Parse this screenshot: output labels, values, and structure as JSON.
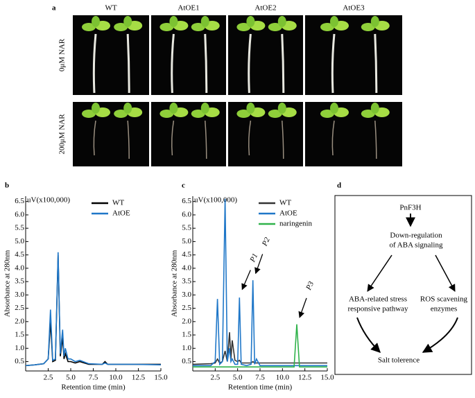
{
  "panel_labels": [
    "a",
    "b",
    "c",
    "d"
  ],
  "photo_panel": {
    "column_labels": [
      "WT",
      "AtOE1",
      "AtOE2",
      "AtOE3"
    ],
    "row_labels": [
      "0μM NAR",
      "200μM NAR"
    ]
  },
  "chart_data": [
    {
      "type": "line",
      "unit_label": "uV(x100,000)",
      "y_label": "Absorbance at 280nm",
      "x_label": "Retention time (min)",
      "x": [
        0,
        1,
        2,
        2.5,
        2.75,
        3.0,
        3.3,
        3.6,
        3.85,
        4.1,
        4.25,
        4.4,
        4.7,
        5.0,
        5.5,
        6.0,
        7,
        8.5,
        8.8,
        9.1,
        10,
        12,
        15
      ],
      "series": [
        {
          "name": "WT",
          "color": "#000000",
          "values": [
            0.35,
            0.38,
            0.42,
            0.6,
            2.0,
            0.5,
            0.55,
            4.5,
            0.7,
            1.4,
            0.6,
            0.8,
            0.5,
            0.5,
            0.45,
            0.5,
            0.4,
            0.4,
            0.5,
            0.4,
            0.4,
            0.4,
            0.4
          ]
        },
        {
          "name": "AtOE",
          "color": "#1f77c8",
          "values": [
            0.35,
            0.38,
            0.42,
            0.6,
            2.45,
            0.55,
            0.6,
            4.6,
            0.8,
            1.7,
            0.7,
            1.0,
            0.6,
            0.6,
            0.5,
            0.55,
            0.42,
            0.4,
            0.45,
            0.4,
            0.4,
            0.4,
            0.38
          ]
        }
      ],
      "xlim": [
        0,
        15
      ],
      "ylim": [
        0.15,
        6.7
      ],
      "xticks": [
        2.5,
        {
          "value": 5,
          "label": "5.0"
        },
        7.5,
        {
          "value": 10,
          "label": "10.0"
        },
        12.5,
        {
          "value": 15,
          "label": "15.0"
        }
      ],
      "yticks": [
        0.5,
        {
          "value": 1,
          "label": "1.0"
        },
        1.5,
        {
          "value": 2,
          "label": "2.0"
        },
        2.5,
        {
          "value": 3,
          "label": "3.0"
        },
        3.5,
        {
          "value": 4,
          "label": "4.0"
        },
        4.5,
        {
          "value": 5,
          "label": "5.0"
        },
        5.5,
        {
          "value": 6,
          "label": "6.0"
        },
        6.5
      ]
    },
    {
      "type": "line",
      "unit_label": "uV(x100,000)",
      "y_label": "Absorbance at 280nm",
      "x_label": "Retention time (min)",
      "annotations": [
        "P1",
        "P2",
        "P3"
      ],
      "x": [
        0,
        2,
        2.5,
        2.75,
        3.0,
        3.3,
        3.6,
        3.85,
        4.1,
        4.25,
        4.4,
        4.7,
        5.0,
        5.2,
        5.4,
        6.0,
        6.5,
        6.7,
        6.9,
        7.1,
        7.5,
        9,
        11.3,
        11.6,
        11.9,
        13,
        15
      ],
      "series": [
        {
          "name": "WT",
          "color": "#333333",
          "values": [
            0.4,
            0.42,
            0.45,
            0.6,
            0.45,
            0.5,
            0.9,
            0.5,
            1.6,
            0.6,
            1.3,
            0.55,
            0.5,
            0.55,
            0.45,
            0.45,
            0.45,
            0.5,
            0.45,
            0.45,
            0.45,
            0.45,
            0.45,
            0.45,
            0.45,
            0.45,
            0.45
          ]
        },
        {
          "name": "AtOE",
          "color": "#1f77c8",
          "values": [
            0.35,
            0.35,
            0.5,
            2.85,
            0.4,
            0.5,
            6.6,
            0.5,
            1.0,
            0.5,
            0.6,
            0.4,
            0.4,
            2.9,
            0.4,
            0.35,
            0.4,
            3.55,
            0.4,
            0.6,
            0.35,
            0.35,
            0.35,
            0.35,
            0.35,
            0.35,
            0.35
          ]
        },
        {
          "name": "naringenin",
          "color": "#2fb24a",
          "values": [
            0.3,
            0.3,
            0.3,
            0.3,
            0.3,
            0.3,
            0.3,
            0.3,
            0.3,
            0.3,
            0.3,
            0.3,
            0.3,
            0.3,
            0.3,
            0.3,
            0.3,
            0.3,
            0.3,
            0.3,
            0.3,
            0.3,
            0.3,
            1.9,
            0.3,
            0.3,
            0.3
          ]
        }
      ],
      "xlim": [
        0,
        15
      ],
      "ylim": [
        0.15,
        6.7
      ],
      "xticks": [
        2.5,
        {
          "value": 5,
          "label": "5.0"
        },
        7.5,
        {
          "value": 10,
          "label": "10.0"
        },
        12.5,
        {
          "value": 15,
          "label": "15.0"
        }
      ],
      "yticks": [
        0.5,
        {
          "value": 1,
          "label": "1.0"
        },
        1.5,
        {
          "value": 2,
          "label": "2.0"
        },
        2.5,
        {
          "value": 3,
          "label": "3.0"
        },
        3.5,
        {
          "value": 4,
          "label": "4.0"
        },
        4.5,
        {
          "value": 5,
          "label": "5.0"
        },
        5.5,
        {
          "value": 6,
          "label": "6.0"
        },
        6.5
      ]
    }
  ],
  "diagram": {
    "nodes": [
      [
        "PnF3H"
      ],
      [
        "Down-regulation",
        "of  ABA signaling"
      ],
      [
        "ABA-related stress",
        "responsive pathway"
      ],
      [
        "ROS scavening",
        "enzymes"
      ],
      [
        "Salt  tolerence"
      ]
    ]
  }
}
